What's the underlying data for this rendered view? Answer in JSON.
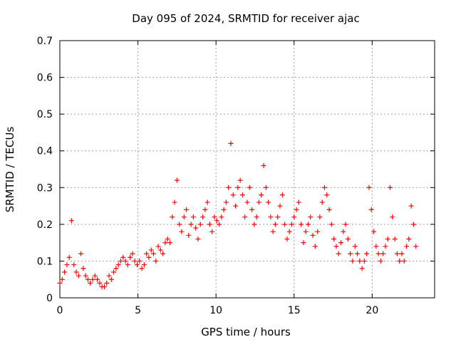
{
  "chart_data": {
    "type": "scatter",
    "title": "Day 095 of 2024, SRMTID for receiver ajac",
    "xlabel": "GPS time / hours",
    "ylabel": "SRMTID / TECUs",
    "xlim": [
      0,
      24
    ],
    "ylim": [
      0,
      0.7
    ],
    "xticks": [
      "0",
      "5",
      "10",
      "15",
      "20"
    ],
    "xtick_values": [
      0,
      5,
      10,
      15,
      20
    ],
    "yticks": [
      "0",
      "0.1",
      "0.2",
      "0.3",
      "0.4",
      "0.5",
      "0.6",
      "0.7"
    ],
    "ytick_values": [
      0,
      0.1,
      0.2,
      0.3,
      0.4,
      0.5,
      0.6,
      0.7
    ],
    "grid": true,
    "marker": "+",
    "color": "#ff0000",
    "series": [
      {
        "name": "SRMTID",
        "x": [
          0.0,
          0.15,
          0.3,
          0.45,
          0.6,
          0.75,
          0.9,
          1.05,
          1.2,
          1.35,
          1.5,
          1.65,
          1.8,
          1.95,
          2.1,
          2.25,
          2.4,
          2.55,
          2.7,
          2.85,
          3.0,
          3.15,
          3.3,
          3.45,
          3.6,
          3.75,
          3.9,
          4.05,
          4.2,
          4.35,
          4.5,
          4.65,
          4.8,
          4.95,
          5.1,
          5.25,
          5.4,
          5.55,
          5.7,
          5.85,
          6.0,
          6.15,
          6.3,
          6.45,
          6.6,
          6.75,
          6.9,
          7.05,
          7.2,
          7.35,
          7.5,
          7.65,
          7.8,
          7.95,
          8.1,
          8.25,
          8.4,
          8.55,
          8.7,
          8.85,
          9.0,
          9.15,
          9.3,
          9.45,
          9.6,
          9.75,
          9.9,
          10.05,
          10.2,
          10.35,
          10.5,
          10.65,
          10.8,
          10.95,
          11.1,
          11.25,
          11.4,
          11.55,
          11.7,
          11.85,
          12.0,
          12.15,
          12.3,
          12.45,
          12.6,
          12.75,
          12.9,
          13.05,
          13.2,
          13.35,
          13.5,
          13.65,
          13.8,
          13.95,
          14.1,
          14.25,
          14.4,
          14.55,
          14.7,
          14.85,
          15.0,
          15.15,
          15.3,
          15.45,
          15.6,
          15.75,
          15.9,
          16.05,
          16.2,
          16.35,
          16.5,
          16.65,
          16.8,
          16.95,
          17.1,
          17.25,
          17.4,
          17.55,
          17.7,
          17.85,
          18.0,
          18.15,
          18.3,
          18.45,
          18.6,
          18.75,
          18.9,
          19.05,
          19.2,
          19.35,
          19.5,
          19.65,
          19.8,
          19.95,
          20.1,
          20.25,
          20.4,
          20.55,
          20.7,
          20.85,
          21.0,
          21.15,
          21.3,
          21.45,
          21.6,
          21.75,
          21.9,
          22.05,
          22.2,
          22.35,
          22.5,
          22.65,
          22.8
        ],
        "y": [
          0.04,
          0.05,
          0.07,
          0.09,
          0.11,
          0.21,
          0.09,
          0.07,
          0.06,
          0.12,
          0.08,
          0.06,
          0.05,
          0.04,
          0.05,
          0.06,
          0.05,
          0.04,
          0.03,
          0.03,
          0.04,
          0.06,
          0.05,
          0.07,
          0.08,
          0.09,
          0.1,
          0.11,
          0.1,
          0.09,
          0.11,
          0.12,
          0.1,
          0.09,
          0.1,
          0.08,
          0.09,
          0.12,
          0.11,
          0.13,
          0.12,
          0.1,
          0.14,
          0.13,
          0.12,
          0.15,
          0.16,
          0.15,
          0.22,
          0.26,
          0.32,
          0.2,
          0.18,
          0.22,
          0.24,
          0.17,
          0.2,
          0.22,
          0.19,
          0.16,
          0.2,
          0.22,
          0.24,
          0.26,
          0.2,
          0.18,
          0.22,
          0.21,
          0.2,
          0.22,
          0.24,
          0.26,
          0.3,
          0.42,
          0.28,
          0.25,
          0.3,
          0.32,
          0.28,
          0.22,
          0.26,
          0.3,
          0.24,
          0.2,
          0.22,
          0.26,
          0.28,
          0.36,
          0.3,
          0.26,
          0.22,
          0.18,
          0.2,
          0.22,
          0.25,
          0.28,
          0.2,
          0.16,
          0.18,
          0.2,
          0.22,
          0.24,
          0.26,
          0.2,
          0.15,
          0.18,
          0.2,
          0.22,
          0.17,
          0.14,
          0.18,
          0.22,
          0.26,
          0.3,
          0.28,
          0.24,
          0.2,
          0.16,
          0.14,
          0.12,
          0.15,
          0.18,
          0.2,
          0.16,
          0.12,
          0.1,
          0.14,
          0.12,
          0.1,
          0.08,
          0.1,
          0.12,
          0.3,
          0.24,
          0.18,
          0.14,
          0.12,
          0.1,
          0.12,
          0.14,
          0.16,
          0.3,
          0.22,
          0.16,
          0.12,
          0.1,
          0.12,
          0.1,
          0.14,
          0.16,
          0.25,
          0.2,
          0.14
        ]
      }
    ]
  }
}
